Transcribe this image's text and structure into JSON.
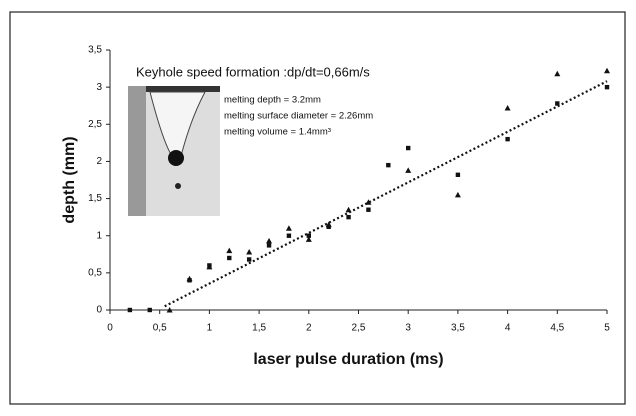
{
  "chart_data": {
    "type": "scatter",
    "xlabel": "laser pulse duration (ms)",
    "ylabel": "depth (mm)",
    "annotations": [
      "Keyhole speed formation :dp/dt=0,66m/s",
      "melting depth = 3.2mm",
      "melting surface diameter = 2.26mm",
      "melting volume = 1.4mm³"
    ],
    "xlim": [
      0,
      5
    ],
    "ylim": [
      0,
      3.5
    ],
    "xticks": [
      0,
      {
        "value": 0.5,
        "label": "0,5"
      },
      1,
      {
        "value": 1.5,
        "label": "1,5"
      },
      2,
      {
        "value": 2.5,
        "label": "2,5"
      },
      3,
      {
        "value": 3.5,
        "label": "3,5"
      },
      4,
      {
        "value": 4.5,
        "label": "4,5"
      },
      5
    ],
    "yticks": [
      0,
      {
        "value": 0.5,
        "label": "0,5"
      },
      1,
      {
        "value": 1.5,
        "label": "1,5"
      },
      2,
      {
        "value": 2.5,
        "label": "2,5"
      },
      3,
      {
        "value": 3.5,
        "label": "3,5"
      }
    ],
    "grid": false,
    "series": [
      {
        "marker": "square",
        "color": "#111111",
        "x": [
          0.2,
          0.4,
          0.8,
          1,
          1.2,
          1.4,
          1.6,
          1.8,
          2,
          2.2,
          2.4,
          2.6,
          2.8,
          3,
          3.5,
          4,
          4.5,
          5
        ],
        "values": [
          0,
          0,
          0.4,
          0.6,
          0.7,
          0.68,
          0.87,
          1.0,
          1.0,
          1.12,
          1.25,
          1.35,
          1.95,
          2.18,
          1.82,
          2.3,
          2.78,
          3.0
        ]
      },
      {
        "marker": "triangle",
        "color": "#111111",
        "x": [
          0.6,
          0.8,
          1,
          1.2,
          1.4,
          1.6,
          1.8,
          2,
          2.2,
          2.4,
          2.6,
          3,
          3.5,
          4,
          4.5,
          5
        ],
        "values": [
          0,
          0.42,
          0.58,
          0.8,
          0.78,
          0.93,
          1.1,
          0.95,
          1.15,
          1.35,
          1.45,
          1.88,
          1.55,
          2.72,
          3.18,
          3.22
        ]
      }
    ],
    "trendline": {
      "color": "#111111",
      "x": [
        0.55,
        5
      ],
      "values": [
        0.05,
        3.08
      ]
    }
  }
}
